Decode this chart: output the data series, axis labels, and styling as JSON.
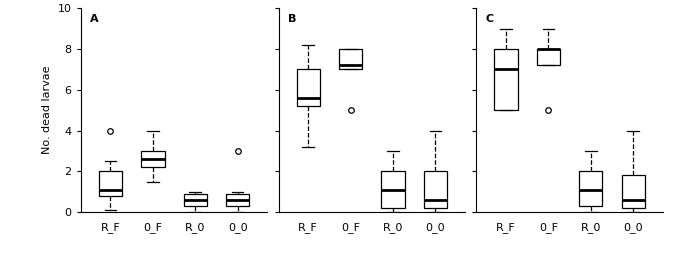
{
  "panels": [
    "A",
    "B",
    "C"
  ],
  "categories": [
    "R_F",
    "0_F",
    "R_0",
    "0_0"
  ],
  "ylabel": "No. dead larvae",
  "ylim": [
    0,
    10
  ],
  "yticks": [
    0,
    2,
    4,
    6,
    8,
    10
  ],
  "panel_A": {
    "R_F": {
      "whislo": 0.1,
      "q1": 0.8,
      "med": 1.1,
      "q3": 2.0,
      "whishi": 2.5,
      "fliers": [
        4.0
      ]
    },
    "0_F": {
      "whislo": 1.5,
      "q1": 2.2,
      "med": 2.6,
      "q3": 3.0,
      "whishi": 4.0,
      "fliers": []
    },
    "R_0": {
      "whislo": 0.0,
      "q1": 0.3,
      "med": 0.6,
      "q3": 0.9,
      "whishi": 1.0,
      "fliers": []
    },
    "0_0": {
      "whislo": 0.0,
      "q1": 0.3,
      "med": 0.6,
      "q3": 0.9,
      "whishi": 1.0,
      "fliers": [
        3.0
      ]
    }
  },
  "panel_B": {
    "R_F": {
      "whislo": 3.2,
      "q1": 5.2,
      "med": 5.6,
      "q3": 7.0,
      "whishi": 8.2,
      "fliers": []
    },
    "0_F": {
      "whislo": 7.0,
      "q1": 7.0,
      "med": 7.2,
      "q3": 8.0,
      "whishi": 8.0,
      "fliers": [
        5.0
      ]
    },
    "R_0": {
      "whislo": 0.0,
      "q1": 0.2,
      "med": 1.1,
      "q3": 2.0,
      "whishi": 3.0,
      "fliers": []
    },
    "0_0": {
      "whislo": 0.0,
      "q1": 0.2,
      "med": 0.6,
      "q3": 2.0,
      "whishi": 4.0,
      "fliers": []
    }
  },
  "panel_C": {
    "R_F": {
      "whislo": 5.0,
      "q1": 5.0,
      "med": 7.0,
      "q3": 8.0,
      "whishi": 9.0,
      "fliers": []
    },
    "0_F": {
      "whislo": 7.2,
      "q1": 7.2,
      "med": 8.0,
      "q3": 8.0,
      "whishi": 9.0,
      "fliers": [
        5.0
      ]
    },
    "R_0": {
      "whislo": 0.0,
      "q1": 0.3,
      "med": 1.1,
      "q3": 2.0,
      "whishi": 3.0,
      "fliers": []
    },
    "0_0": {
      "whislo": 0.0,
      "q1": 0.2,
      "med": 0.6,
      "q3": 1.8,
      "whishi": 4.0,
      "fliers": []
    }
  },
  "box_facecolor": "#ffffff",
  "box_edgecolor": "#000000",
  "median_color": "#000000",
  "whisker_color": "#000000",
  "cap_color": "#000000",
  "flier_color": "#000000",
  "linewidth": 0.9,
  "medianlinewidth": 2.0,
  "figsize": [
    6.73,
    2.72
  ],
  "dpi": 100
}
